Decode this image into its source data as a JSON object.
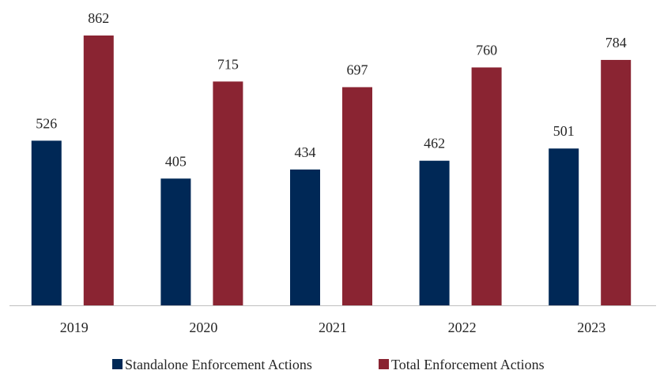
{
  "chart_data": {
    "type": "bar",
    "title": "",
    "xlabel": "",
    "ylabel": "",
    "categories": [
      "2019",
      "2020",
      "2021",
      "2022",
      "2023"
    ],
    "series": [
      {
        "name": "Standalone Enforcement Actions",
        "values": [
          526,
          405,
          434,
          462,
          501
        ],
        "color": "#002856"
      },
      {
        "name": "Total Enforcement Actions",
        "values": [
          862,
          715,
          697,
          760,
          784
        ],
        "color": "#8a2432"
      }
    ],
    "ylim": [
      0,
      862
    ],
    "data_labels": true,
    "gridlines": false,
    "legend_position": "bottom-center"
  }
}
